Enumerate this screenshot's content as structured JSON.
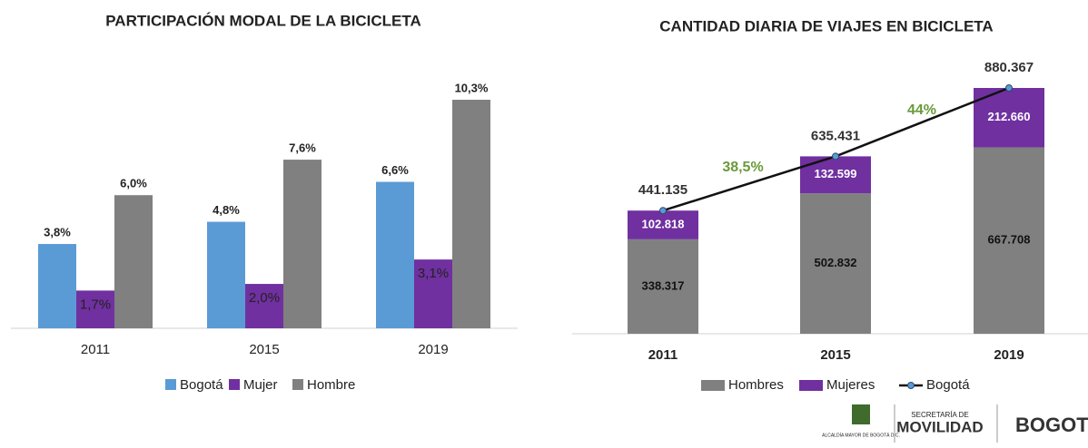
{
  "chart_data": [
    {
      "type": "bar",
      "title": "PARTICIPACIÓN MODAL DE LA BICICLETA",
      "categories": [
        "2011",
        "2015",
        "2019"
      ],
      "series": [
        {
          "name": "Bogotá",
          "color": "#5b9bd5",
          "values": [
            3.8,
            4.8,
            6.6
          ],
          "value_labels": [
            "3,8%",
            "4,8%",
            "6,6%"
          ]
        },
        {
          "name": "Mujer",
          "color": "#7030a0",
          "values": [
            1.7,
            2.0,
            3.1
          ],
          "value_labels": [
            "1,7%",
            "2,0%",
            "3,1%"
          ]
        },
        {
          "name": "Hombre",
          "color": "#808080",
          "values": [
            6.0,
            7.6,
            10.3
          ],
          "value_labels": [
            "6,0%",
            "7,6%",
            "10,3%"
          ]
        }
      ],
      "legend": "bottom"
    },
    {
      "type": "stacked-bar-line",
      "title": "CANTIDAD DIARIA DE VIAJES EN BICICLETA",
      "categories": [
        "2011",
        "2015",
        "2019"
      ],
      "series": [
        {
          "name": "Hombres",
          "color": "#808080",
          "values": [
            338317,
            502832,
            667708
          ],
          "value_labels": [
            "338.317",
            "502.832",
            "667.708"
          ]
        },
        {
          "name": "Mujeres",
          "color": "#7030a0",
          "values": [
            102818,
            132599,
            212660
          ],
          "value_labels": [
            "102.818",
            "132.599",
            "212.660"
          ]
        },
        {
          "name": "Bogotá",
          "color": "#111111",
          "type": "line",
          "values": [
            441135,
            635431,
            880367
          ],
          "value_labels": [
            "441.135",
            "635.431",
            "880.367"
          ]
        }
      ],
      "annotations": [
        {
          "text": "38,5%",
          "color": "#6a9a3a"
        },
        {
          "text": "44%",
          "color": "#6a9a3a"
        }
      ],
      "legend": "bottom"
    }
  ],
  "footer": {
    "alcaldia": "ALCALDÍA MAYOR DE BOGOTÁ D.C.",
    "secretaria": "SECRETARÍA DE",
    "movilidad": "MOVILIDAD",
    "bogota": "BOGOTÁ"
  }
}
